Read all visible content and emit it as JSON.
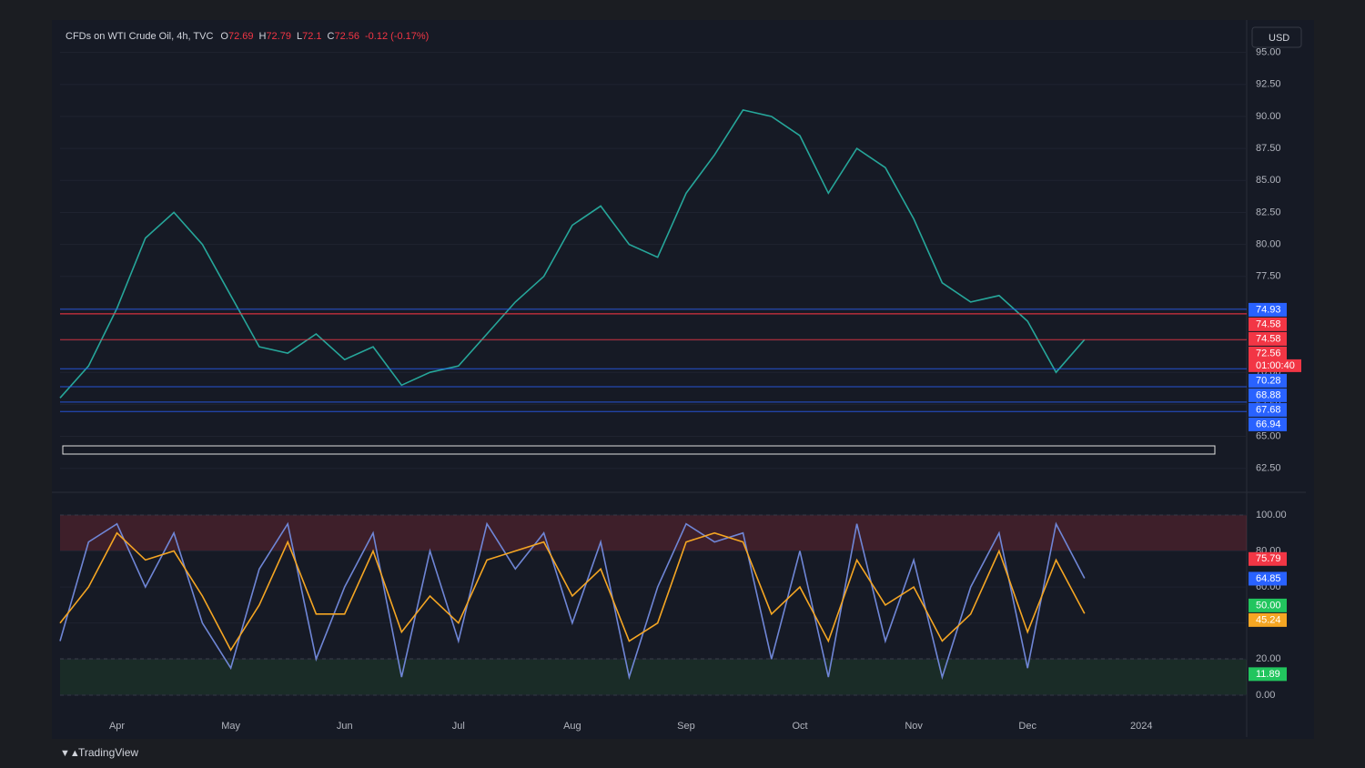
{
  "chart_data": [
    {
      "type": "line",
      "title": "CFDs on WTI Crude Oil, 4h, TVC",
      "ohlc": [
        {
          "name": "O",
          "value": 72.69
        },
        {
          "name": "H",
          "value": 72.79
        },
        {
          "name": "L",
          "value": 72.1
        },
        {
          "name": "C",
          "value": 72.56
        }
      ],
      "change": "-0.12 (-0.17%)",
      "currency": "USD",
      "categories": [
        null,
        null,
        "Apr",
        null,
        null,
        null,
        "May",
        null,
        null,
        null,
        "Jun",
        null,
        null,
        null,
        "Jul",
        null,
        null,
        null,
        "Aug",
        null,
        null,
        null,
        "Sep",
        null,
        null,
        null,
        "Oct",
        null,
        null,
        null,
        "Nov",
        null,
        null,
        null,
        "Dec",
        null,
        null,
        null,
        "2024"
      ],
      "series": [
        {
          "color": "#26a69a",
          "values": [
            68,
            70.5,
            75,
            80.5,
            82.5,
            80,
            76,
            72,
            71.5,
            73,
            71,
            72,
            69,
            70,
            70.5,
            73,
            75.5,
            77.5,
            81.5,
            83,
            80,
            79,
            84,
            87,
            90.5,
            90,
            88.5,
            84,
            87.5,
            86,
            82,
            77,
            75.5,
            76,
            74,
            70,
            72.56,
            null,
            null
          ]
        }
      ],
      "ylim": [
        60.7,
        95.9
      ],
      "yticks": [
        {
          "value": 62.5,
          "label": "62.50"
        },
        {
          "value": 65,
          "label": "65.00"
        },
        {
          "value": 67.5,
          "label": "67.50"
        },
        {
          "value": 70,
          "label": "70.00"
        },
        {
          "value": 72.5,
          "label": "72.50"
        },
        {
          "value": 75,
          "label": "75.00"
        },
        {
          "value": 77.5,
          "label": "77.50"
        },
        {
          "value": 80,
          "label": "80.00"
        },
        {
          "value": 82.5,
          "label": "82.50"
        },
        {
          "value": 85,
          "label": "85.00"
        },
        {
          "value": 87.5,
          "label": "87.50"
        },
        {
          "value": 90,
          "label": "90.00"
        },
        {
          "value": 92.5,
          "label": "92.50"
        },
        {
          "value": 95,
          "label": "95.00"
        }
      ],
      "levels": [
        {
          "value": 74.93,
          "color": "#2962ff"
        },
        {
          "value": 74.58,
          "color": "#f23645"
        },
        {
          "value": 74.58,
          "color": "#f23645"
        },
        {
          "value": 72.56,
          "color": "#f23645"
        },
        {
          "value": 70.28,
          "color": "#2962ff"
        },
        {
          "value": 68.88,
          "color": "#2962ff"
        },
        {
          "value": 67.68,
          "color": "#2962ff"
        },
        {
          "value": 66.94,
          "color": "#2962ff"
        }
      ],
      "countdown": "01:00:40"
    },
    {
      "type": "line",
      "series": [
        {
          "color": "#6f86d6",
          "values": [
            30,
            85,
            95,
            60,
            90,
            40,
            15,
            70,
            95,
            20,
            60,
            90,
            10,
            80,
            30,
            95,
            70,
            90,
            40,
            85,
            10,
            60,
            95,
            85,
            90,
            20,
            80,
            10,
            95,
            30,
            75,
            10,
            60,
            90,
            15,
            95,
            64.85,
            null,
            null
          ]
        },
        {
          "color": "#f5a623",
          "values": [
            40,
            60,
            90,
            75,
            80,
            55,
            25,
            50,
            85,
            45,
            45,
            80,
            35,
            55,
            40,
            75,
            80,
            85,
            55,
            70,
            30,
            40,
            85,
            90,
            85,
            45,
            60,
            30,
            75,
            50,
            60,
            30,
            45,
            80,
            35,
            75,
            45.24,
            null,
            null
          ]
        }
      ],
      "ylim": [
        -5.6,
        108
      ],
      "yticks": [
        {
          "value": 0,
          "label": "0.00"
        },
        {
          "value": 20,
          "label": "20.00"
        },
        {
          "value": 40,
          "label": "40.00"
        },
        {
          "value": 60,
          "label": "60.00"
        },
        {
          "value": 80,
          "label": "80.00"
        },
        {
          "value": 100,
          "label": "100.00"
        }
      ],
      "bands": [
        {
          "from": 80,
          "to": 100,
          "color": "#f23645"
        },
        {
          "from": 0,
          "to": 20,
          "color": "#2e7d32"
        }
      ],
      "levels": [
        {
          "value": 75.79,
          "color": "#f23645"
        },
        {
          "value": 64.85,
          "color": "#2962ff"
        },
        {
          "value": {
            "value": 50,
            "label": "50.00"
          },
          "color": "#22c55e"
        },
        {
          "value": 45.24,
          "color": "#f5a623"
        },
        {
          "value": 11.89,
          "color": "#22c55e"
        }
      ]
    }
  ],
  "brand": "TradingView"
}
